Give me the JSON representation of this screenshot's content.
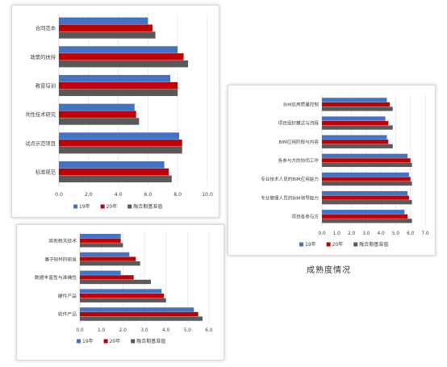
{
  "caption": "成熟度情况",
  "colors": {
    "s19": "#4472c4",
    "s20": "#c00000",
    "base": "#595959",
    "grid": "#e3e3e3",
    "axis": "#d0d0d0",
    "text": "#404040"
  },
  "chart_data": [
    {
      "type": "bar",
      "orientation": "horizontal",
      "categories": [
        "合同范本",
        "政策的扶持",
        "教育培训",
        "共性技术研究",
        "试点示范项目",
        "标准规范"
      ],
      "series": [
        {
          "name": "19年",
          "values": [
            6.0,
            8.0,
            7.5,
            5.1,
            8.1,
            7.1
          ]
        },
        {
          "name": "20年",
          "values": [
            6.3,
            8.4,
            8.0,
            5.2,
            8.3,
            7.4
          ]
        },
        {
          "name": "融合期基准值",
          "values": [
            6.5,
            8.7,
            8.0,
            5.4,
            8.3,
            7.6
          ]
        }
      ],
      "xlim": [
        0,
        10
      ],
      "xticks": [
        "0.0",
        "2.0",
        "4.0",
        "6.0",
        "8.0",
        "10.0"
      ],
      "legend": "bottom",
      "grid": true
    },
    {
      "type": "bar",
      "orientation": "horizontal",
      "categories": [
        "BIM应用质量控制",
        "项目组织模式与流程",
        "BIM应用阶段与内容",
        "各参与方的协同工作",
        "专业技术人员的BIM应用能力",
        "专业管理人员的BIM领导能力",
        "项目各参与方"
      ],
      "series": [
        {
          "name": "19年",
          "values": [
            4.4,
            4.3,
            4.4,
            5.8,
            5.9,
            5.8,
            5.6
          ]
        },
        {
          "name": "20年",
          "values": [
            4.6,
            4.5,
            4.5,
            6.0,
            6.0,
            5.9,
            5.8
          ]
        },
        {
          "name": "融合期基准值",
          "values": [
            4.8,
            4.8,
            4.8,
            6.1,
            6.1,
            6.1,
            6.1
          ]
        }
      ],
      "xlim": [
        0,
        7
      ],
      "xticks": [
        "0.0",
        "1.0",
        "2.0",
        "3.0",
        "4.0",
        "5.0",
        "6.0",
        "7.0"
      ],
      "legend": "bottom",
      "grid": true
    },
    {
      "type": "bar",
      "orientation": "horizontal",
      "categories": [
        "其他相关技术",
        "基于BIM的研发",
        "数据丰富性与准确性",
        "硬件产品",
        "软件产品"
      ],
      "series": [
        {
          "name": "19年",
          "values": [
            1.9,
            2.3,
            1.9,
            3.8,
            5.3
          ]
        },
        {
          "name": "20年",
          "values": [
            1.9,
            2.6,
            2.5,
            3.9,
            5.5
          ]
        },
        {
          "name": "融合期基准值",
          "values": [
            2.0,
            2.8,
            3.3,
            4.0,
            5.7
          ]
        }
      ],
      "xlim": [
        0,
        6
      ],
      "xticks": [
        "0.0",
        "1.0",
        "2.0",
        "3.0",
        "4.0",
        "5.0",
        "6.0"
      ],
      "legend": "bottom",
      "grid": true
    }
  ]
}
